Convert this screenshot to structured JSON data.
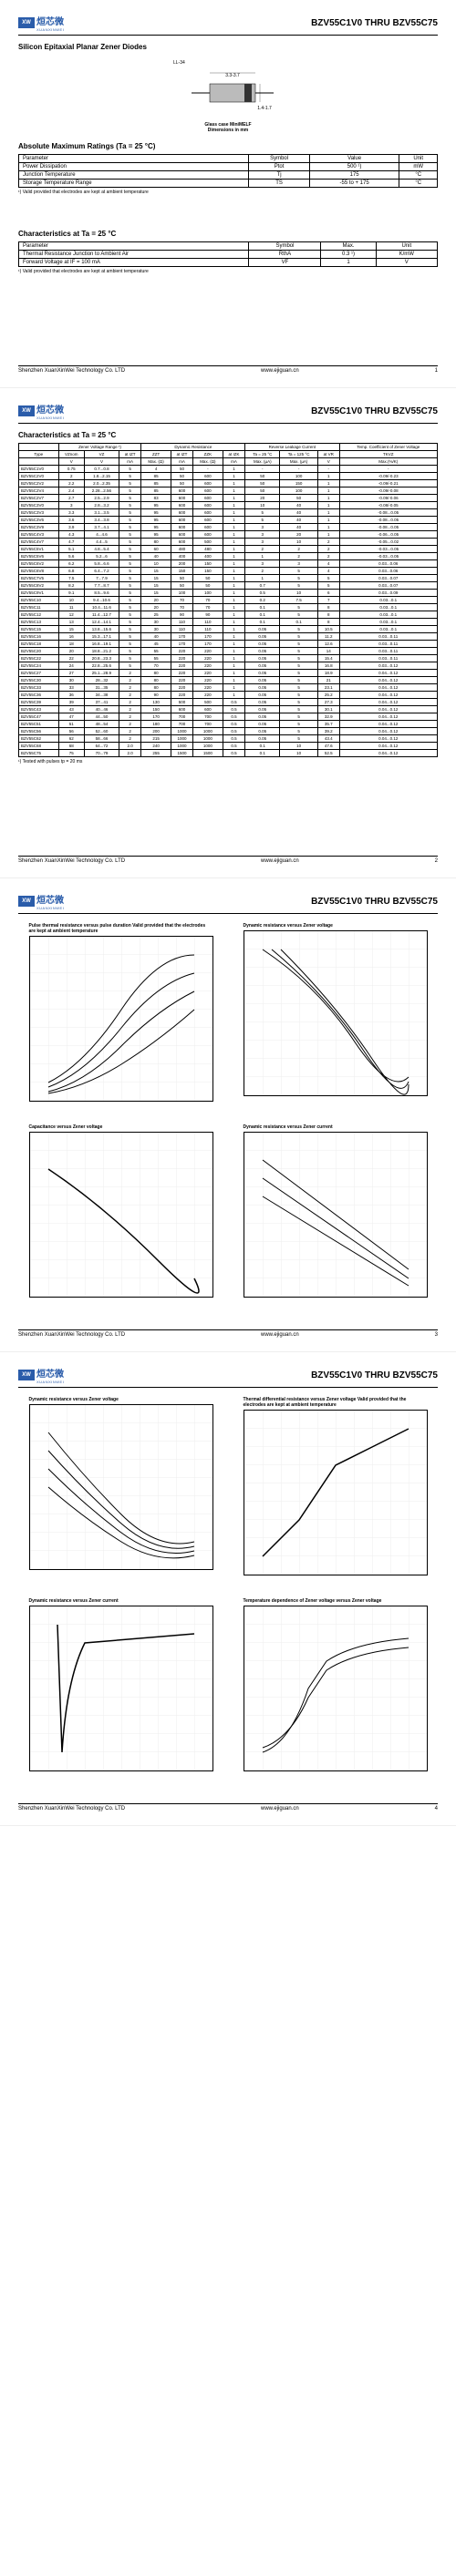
{
  "company": "Shenzhen XuanXinWei Technology Co. LTD",
  "website": "www.ejiguan.cn",
  "logo_chinese": "烜芯微",
  "logo_pinyin": "XUANXINWEI",
  "logo_badge": "XW",
  "doc_title": "BZV55C1V0 THRU BZV55C75",
  "page1": {
    "subtitle": "Silicon Epitaxial Planar Zener Diodes",
    "package_label": "LL-34",
    "package_note1": "Glass case MiniMELF",
    "package_note2": "Dimensions in mm",
    "dim1": "3.3-3.7",
    "dim2": "1.4-1.7",
    "abs_max_title": "Absolute Maximum Ratings (Ta = 25 °C)",
    "abs_max_headers": [
      "Parameter",
      "Symbol",
      "Value",
      "Unit"
    ],
    "abs_max_rows": [
      [
        "Power Dissipation",
        "Ptot",
        "500 ¹)",
        "mW"
      ],
      [
        "Junction Temperature",
        "Tj",
        "175",
        "°C"
      ],
      [
        "Storage Temperature Range",
        "TS",
        "-55 to + 175",
        "°C"
      ]
    ],
    "abs_max_footnote": "¹) Valid provided that electrodes are kept at ambient temperature",
    "char_title": "Characteristics at Ta = 25 °C",
    "char_headers": [
      "Parameter",
      "Symbol",
      "Max.",
      "Unit"
    ],
    "char_rows": [
      [
        "Thermal Resistance Junction to Ambient Air",
        "RthA",
        "0.3 ¹)",
        "K/mW"
      ],
      [
        "Forward Voltage\nat IF = 100 mA",
        "VF",
        "1",
        "V"
      ]
    ],
    "char_footnote": "¹) Valid provided that electrodes are kept at ambient temperature"
  },
  "page2": {
    "table_title": "Characteristics at Ta = 25 °C",
    "header_groups": [
      "",
      "Zener Voltage Range ¹)",
      "Dynamic Resistance",
      "Reverse Leakage Current",
      "Temp. Coefficient of Zener Voltage"
    ],
    "sub_headers": [
      "Type",
      "VZnom",
      "VZ",
      "at IZT",
      "ZZT",
      "at IZT",
      "ZZK",
      "at IZK",
      "Ta = 25 °C",
      "Ta = 125 °C",
      "at VR",
      "TKVZ"
    ],
    "unit_row": [
      "",
      "V",
      "V",
      "mA",
      "Max. (Ω)",
      "mA",
      "Max. (Ω)",
      "mA",
      "Max. (µA)",
      "Max. (µA)",
      "V",
      "Max.(%/K)"
    ],
    "rows": [
      [
        "BZV55C1V0",
        "0.75",
        "0.7...0.8",
        "5",
        "4",
        "50",
        "-",
        "1",
        "-",
        "-",
        "-",
        "-"
      ],
      [
        "BZV55C2V0",
        "2",
        "1.8...2.15",
        "5",
        "85",
        "50",
        "600",
        "1",
        "50",
        "100",
        "1",
        "-0.09/-0.23"
      ],
      [
        "BZV55C2V2",
        "2.2",
        "2.0...2.35",
        "5",
        "85",
        "50",
        "600",
        "1",
        "50",
        "150",
        "1",
        "-0.09/-0.21"
      ],
      [
        "BZV55C2V4",
        "2.4",
        "2.28...2.56",
        "5",
        "85",
        "600",
        "600",
        "1",
        "50",
        "100",
        "1",
        "-0.09/-0.08"
      ],
      [
        "BZV55C2V7",
        "2.7",
        "2.5...2.9",
        "5",
        "83",
        "600",
        "600",
        "1",
        "20",
        "50",
        "1",
        "-0.09/-0.06"
      ],
      [
        "BZV55C3V0",
        "3",
        "2.8...3.2",
        "5",
        "95",
        "600",
        "600",
        "1",
        "10",
        "40",
        "1",
        "-0.08/-0.05"
      ],
      [
        "BZV55C3V3",
        "3.3",
        "3.1...3.5",
        "5",
        "95",
        "600",
        "600",
        "1",
        "5",
        "40",
        "1",
        "-0.08...0.05"
      ],
      [
        "BZV55C3V6",
        "3.6",
        "3.4...3.8",
        "5",
        "95",
        "600",
        "600",
        "1",
        "5",
        "40",
        "1",
        "-0.08...0.05"
      ],
      [
        "BZV55C3V9",
        "3.9",
        "3.7...4.1",
        "5",
        "95",
        "600",
        "600",
        "1",
        "3",
        "40",
        "1",
        "-0.08...0.05"
      ],
      [
        "BZV55C4V3",
        "4.3",
        "4...4.6",
        "5",
        "95",
        "600",
        "600",
        "1",
        "3",
        "20",
        "1",
        "-0.06...0.05"
      ],
      [
        "BZV55C4V7",
        "4.7",
        "4.4...5",
        "5",
        "80",
        "600",
        "500",
        "1",
        "3",
        "10",
        "2",
        "-0.05...0.02"
      ],
      [
        "BZV55C5V1",
        "5.1",
        "4.8...5.4",
        "5",
        "60",
        "480",
        "480",
        "1",
        "2",
        "2",
        "2",
        "-0.03...0.05"
      ],
      [
        "BZV55C5V6",
        "5.6",
        "5.2...6",
        "5",
        "40",
        "400",
        "400",
        "1",
        "1",
        "2",
        "2",
        "-0.03...0.05"
      ],
      [
        "BZV55C6V2",
        "6.2",
        "5.8...6.6",
        "5",
        "10",
        "200",
        "150",
        "1",
        "3",
        "3",
        "4",
        "0.03...0.06"
      ],
      [
        "BZV55C6V8",
        "6.8",
        "6.4...7.2",
        "5",
        "15",
        "150",
        "150",
        "1",
        "2",
        "5",
        "4",
        "0.03...0.06"
      ],
      [
        "BZV55C7V5",
        "7.5",
        "7...7.9",
        "5",
        "15",
        "50",
        "50",
        "1",
        "1",
        "5",
        "5",
        "0.03...0.07"
      ],
      [
        "BZV55C8V2",
        "8.2",
        "7.7...8.7",
        "5",
        "15",
        "50",
        "50",
        "1",
        "0.7",
        "5",
        "5",
        "0.03...0.07"
      ],
      [
        "BZV55C9V1",
        "9.1",
        "8.5...9.6",
        "5",
        "15",
        "100",
        "100",
        "1",
        "0.5",
        "10",
        "6",
        "0.03...0.09"
      ],
      [
        "BZV55C10",
        "10",
        "9.4...10.6",
        "5",
        "20",
        "70",
        "70",
        "1",
        "0.2",
        "7.5",
        "7",
        "0.03...0.1"
      ],
      [
        "BZV55C11",
        "11",
        "10.4...11.6",
        "5",
        "20",
        "70",
        "70",
        "1",
        "0.1",
        "5",
        "8",
        "0.03...0.1"
      ],
      [
        "BZV55C12",
        "12",
        "11.4...12.7",
        "5",
        "25",
        "90",
        "90",
        "1",
        "0.1",
        "5",
        "8",
        "0.03...0.1"
      ],
      [
        "BZV55C13",
        "13",
        "12.4...14.1",
        "5",
        "30",
        "110",
        "110",
        "1",
        "0.1",
        "0.1",
        "8",
        "0.03...0.1"
      ],
      [
        "BZV55C15",
        "15",
        "13.8...15.6",
        "5",
        "30",
        "110",
        "110",
        "1",
        "0.05",
        "5",
        "10.5",
        "0.03...0.1"
      ],
      [
        "BZV55C16",
        "16",
        "15.3...17.1",
        "5",
        "40",
        "170",
        "170",
        "1",
        "0.05",
        "5",
        "11.2",
        "0.03...0.11"
      ],
      [
        "BZV55C18",
        "18",
        "16.8...19.1",
        "5",
        "45",
        "170",
        "170",
        "1",
        "0.05",
        "5",
        "12.6",
        "0.03...0.11"
      ],
      [
        "BZV55C20",
        "20",
        "18.8...21.2",
        "5",
        "55",
        "220",
        "220",
        "1",
        "0.05",
        "5",
        "14",
        "0.03...0.11"
      ],
      [
        "BZV55C22",
        "22",
        "20.8...23.3",
        "5",
        "55",
        "220",
        "220",
        "1",
        "0.05",
        "5",
        "15.4",
        "0.03...0.11"
      ],
      [
        "BZV55C24",
        "24",
        "22.8...25.6",
        "5",
        "70",
        "220",
        "220",
        "1",
        "0.05",
        "5",
        "16.8",
        "0.03...0.12"
      ],
      [
        "BZV55C27",
        "27",
        "25.1...28.9",
        "2",
        "80",
        "220",
        "220",
        "1",
        "0.05",
        "5",
        "18.9",
        "0.04...0.12"
      ],
      [
        "BZV55C30",
        "30",
        "28...32",
        "2",
        "80",
        "220",
        "220",
        "1",
        "0.05",
        "5",
        "21",
        "0.04...0.12"
      ],
      [
        "BZV55C33",
        "33",
        "31...35",
        "2",
        "80",
        "220",
        "220",
        "1",
        "0.05",
        "5",
        "23.1",
        "0.04...0.12"
      ],
      [
        "BZV55C36",
        "36",
        "34...38",
        "2",
        "90",
        "220",
        "220",
        "1",
        "0.05",
        "5",
        "25.2",
        "0.04...0.12"
      ],
      [
        "BZV55C39",
        "39",
        "37...41",
        "2",
        "130",
        "500",
        "500",
        "0.5",
        "0.05",
        "5",
        "27.3",
        "0.04...0.12"
      ],
      [
        "BZV55C43",
        "43",
        "40...46",
        "2",
        "150",
        "600",
        "600",
        "0.5",
        "0.05",
        "5",
        "30.1",
        "0.04...0.12"
      ],
      [
        "BZV55C47",
        "47",
        "44...50",
        "2",
        "170",
        "700",
        "700",
        "0.5",
        "0.05",
        "5",
        "32.9",
        "0.04...0.12"
      ],
      [
        "BZV55C51",
        "51",
        "48...54",
        "2",
        "180",
        "700",
        "700",
        "0.5",
        "0.05",
        "5",
        "35.7",
        "0.04...0.12"
      ],
      [
        "BZV55C56",
        "56",
        "52...60",
        "2",
        "200",
        "1000",
        "1000",
        "0.5",
        "0.05",
        "5",
        "39.2",
        "0.04...0.12"
      ],
      [
        "BZV55C62",
        "62",
        "58...66",
        "2",
        "215",
        "1000",
        "1000",
        "0.5",
        "0.05",
        "5",
        "43.4",
        "0.04...0.12"
      ],
      [
        "BZV55C68",
        "68",
        "64...72",
        "2.0",
        "240",
        "1000",
        "1000",
        "0.5",
        "0.1",
        "10",
        "47.6",
        "0.04...0.12"
      ],
      [
        "BZV55C75",
        "75",
        "70...79",
        "2.0",
        "255",
        "1500",
        "1500",
        "0.5",
        "0.1",
        "10",
        "52.5",
        "0.04...0.12"
      ]
    ],
    "table_footnote": "¹) Tested with pulses tp = 20 ms"
  },
  "page3": {
    "charts": [
      {
        "title": "Pulse thermal resistance versus pulse duration\nValid provided that the electrodes are kept at ambient temperature"
      },
      {
        "title": "Dynamic resistance versus Zener voltage"
      },
      {
        "title": "Capacitance versus Zener voltage"
      },
      {
        "title": "Dynamic resistance versus Zener current"
      }
    ]
  },
  "page4": {
    "charts": [
      {
        "title": "Dynamic resistance versus Zener voltage"
      },
      {
        "title": "Thermal differential resistance versus Zener voltage\nValid provided that the electrodes are kept at ambient temperature"
      },
      {
        "title": "Dynamic resistance versus Zener current"
      },
      {
        "title": "Temperature dependence of Zener voltage versus Zener voltage"
      }
    ]
  }
}
